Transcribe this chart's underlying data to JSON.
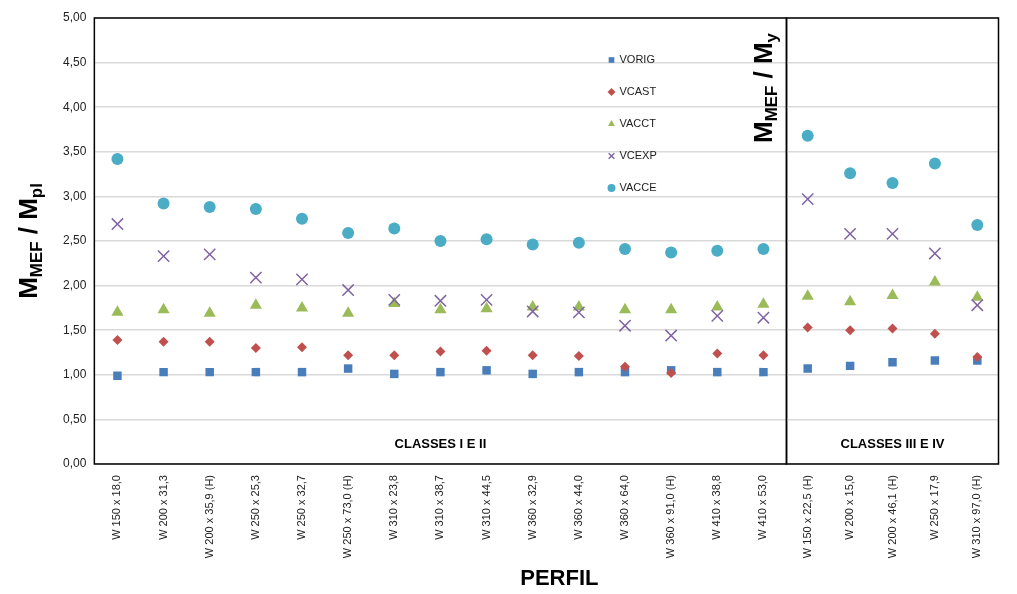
{
  "chart_data": [
    {
      "type": "scatter",
      "xlabel": "PERFIL",
      "ylabel": "M$_{MEF}$ / M$_{pl}$",
      "categories": [
        "W 150 x 18,0",
        "W 200 x 31,3",
        "W 200 x 35,9 (H)",
        "W 250 x 25,3",
        "W 250 x 32,7",
        "W 250 x 73,0 (H)",
        "W 310 x 23,8",
        "W 310 x 38,7",
        "W 310 x 44,5",
        "W 360 x 32,9",
        "W 360 x 44,0",
        "W 360 x 64,0",
        "W 360 x 91,0 (H)",
        "W 410 x 38,8",
        "W 410 x 53,0"
      ],
      "series": [
        {
          "name": "VORIG",
          "color": "#4a7ebb",
          "marker": "square",
          "values": [
            0.99,
            1.03,
            1.03,
            1.03,
            1.03,
            1.07,
            1.01,
            1.03,
            1.05,
            1.01,
            1.03,
            1.03,
            1.05,
            1.03,
            1.03
          ]
        },
        {
          "name": "VCAST",
          "color": "#c0504d",
          "marker": "diamond",
          "values": [
            1.39,
            1.37,
            1.37,
            1.3,
            1.31,
            1.22,
            1.22,
            1.26,
            1.27,
            1.22,
            1.21,
            1.09,
            1.02,
            1.24,
            1.22
          ]
        },
        {
          "name": "VACCT",
          "color": "#9bbb59",
          "marker": "triangle",
          "values": [
            1.7,
            1.73,
            1.69,
            1.78,
            1.75,
            1.69,
            1.8,
            1.73,
            1.74,
            1.76,
            1.76,
            1.73,
            1.73,
            1.76,
            1.79
          ]
        },
        {
          "name": "VCEXP",
          "color": "#8064a2",
          "marker": "cross",
          "values": [
            2.69,
            2.33,
            2.35,
            2.09,
            2.07,
            1.95,
            1.84,
            1.83,
            1.84,
            1.71,
            1.7,
            1.55,
            1.44,
            1.66,
            1.64
          ]
        },
        {
          "name": "VACCE",
          "color": "#4bacc6",
          "marker": "circle",
          "values": [
            3.42,
            2.92,
            2.88,
            2.86,
            2.75,
            2.59,
            2.64,
            2.5,
            2.52,
            2.46,
            2.48,
            2.41,
            2.37,
            2.39,
            2.41
          ]
        }
      ],
      "ylim": [
        0,
        5
      ],
      "yticks": [
        {
          "value": 0,
          "label": "0,00"
        },
        {
          "value": 0.5,
          "label": "0,50"
        },
        {
          "value": 1,
          "label": "1,00"
        },
        {
          "value": 1.5,
          "label": "1,50"
        },
        {
          "value": 2,
          "label": "2,00"
        },
        {
          "value": 2.5,
          "label": "2,50"
        },
        {
          "value": 3,
          "label": "3,00"
        },
        {
          "value": 3.5,
          "label": "3,50"
        },
        {
          "value": 4,
          "label": "4,00"
        },
        {
          "value": 4.5,
          "label": "4,50"
        },
        {
          "value": 5,
          "label": "5,00"
        }
      ],
      "grid": "y",
      "legend": "top right",
      "annotations": [
        "CLASSES I E II"
      ]
    },
    {
      "type": "scatter",
      "ylabel": "M$_{MEF}$ / M$_{y}$",
      "categories": [
        "W 150 x 22,5 (H)",
        "W 200 x 15,0",
        "W 200 x 46,1 (H)",
        "W 250 x 17,9",
        "W 310 x 97,0 (H)"
      ],
      "series": [
        {
          "color": "#4a7ebb",
          "marker": "square",
          "values": [
            1.07,
            1.1,
            1.14,
            1.16,
            1.16
          ]
        },
        {
          "color": "#c0504d",
          "marker": "diamond",
          "values": [
            1.53,
            1.5,
            1.52,
            1.46,
            1.2
          ]
        },
        {
          "color": "#9bbb59",
          "marker": "triangle",
          "values": [
            1.88,
            1.82,
            1.89,
            2.04,
            1.87
          ]
        },
        {
          "color": "#8064a2",
          "marker": "cross",
          "values": [
            2.97,
            2.58,
            2.58,
            2.36,
            1.78
          ]
        },
        {
          "color": "#4bacc6",
          "marker": "circle",
          "values": [
            3.68,
            3.26,
            3.15,
            3.37,
            2.68
          ]
        }
      ],
      "ylim": [
        0,
        5
      ],
      "yticks": [
        {
          "value": 0,
          "label": null
        },
        {
          "value": 0.5,
          "label": null
        },
        {
          "value": 1,
          "label": null
        },
        {
          "value": 1.5,
          "label": null
        },
        {
          "value": 2,
          "label": null
        },
        {
          "value": 2.5,
          "label": null
        },
        {
          "value": 3,
          "label": null
        },
        {
          "value": 3.5,
          "label": null
        },
        {
          "value": 4,
          "label": null
        },
        {
          "value": 4.5,
          "label": null
        },
        {
          "value": 5,
          "label": null
        }
      ],
      "grid": "y",
      "tick_labels": "x",
      "annotations": [
        "CLASSES III E IV"
      ]
    }
  ]
}
